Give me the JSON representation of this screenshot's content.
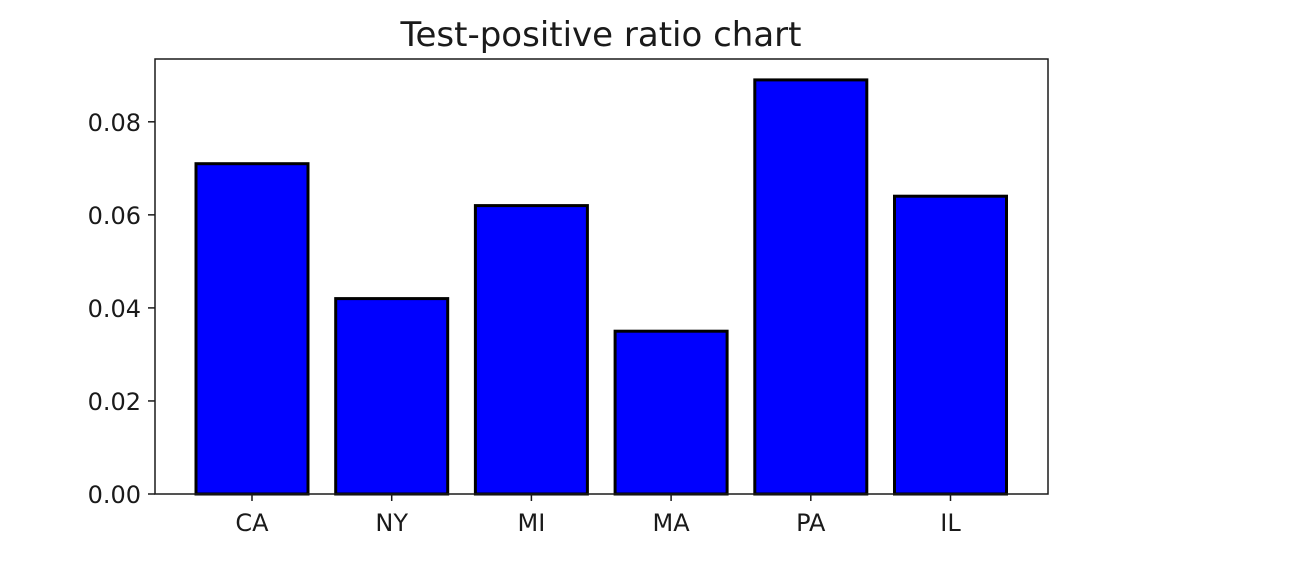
{
  "chart_data": {
    "type": "bar",
    "title": "Test-positive ratio chart",
    "xlabel": "",
    "ylabel": "",
    "categories": [
      "CA",
      "NY",
      "MI",
      "MA",
      "PA",
      "IL"
    ],
    "values": [
      0.071,
      0.042,
      0.062,
      0.035,
      0.089,
      0.064
    ],
    "ylim": [
      0,
      0.0935
    ],
    "yticks": [
      0.0,
      0.02,
      0.04,
      0.06,
      0.08
    ],
    "ytick_labels": [
      "0.00",
      "0.02",
      "0.04",
      "0.06",
      "0.08"
    ],
    "grid": false,
    "legend": "none",
    "bar_color": "#0000ff",
    "bar_edge_color": "#000000"
  }
}
